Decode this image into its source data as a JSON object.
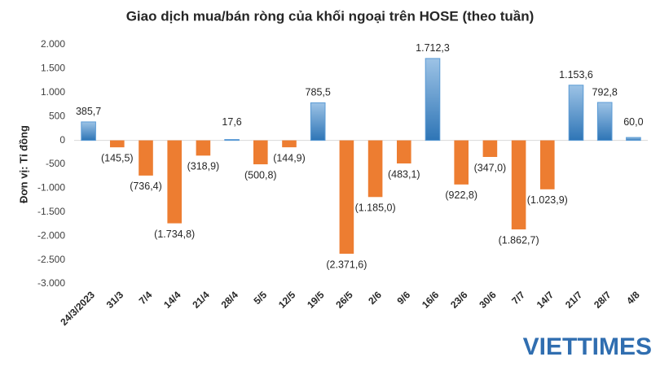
{
  "chart_data": {
    "type": "bar",
    "title": "Giao dịch mua/bán ròng của khối ngoại trên HOSE (theo tuần)",
    "y_label": "Đơn vị: Tỉ đồng",
    "watermark": "VIETTIMES",
    "categories": [
      "24/3/2023",
      "31/3",
      "7/4",
      "14/4",
      "21/4",
      "28/4",
      "5/5",
      "12/5",
      "19/5",
      "26/5",
      "2/6",
      "9/6",
      "16/6",
      "23/6",
      "30/6",
      "7/7",
      "14/7",
      "21/7",
      "28/7",
      "4/8"
    ],
    "values": [
      385.7,
      -145.5,
      -736.4,
      -1734.8,
      -318.9,
      17.6,
      -500.8,
      -144.9,
      785.5,
      -2371.6,
      -1185.0,
      -483.1,
      1712.3,
      -922.8,
      -347.0,
      -1862.7,
      -1023.9,
      1153.6,
      792.8,
      60.0
    ],
    "value_labels": [
      "385,7",
      "(145,5)",
      "(736,4)",
      "(1.734,8)",
      "(318,9)",
      "17,6",
      "(500,8)",
      "(144,9)",
      "785,5",
      "(2.371,6)",
      "(1.185,0)",
      "(483,1)",
      "1.712,3",
      "(922,8)",
      "(347,0)",
      "(1.862,7)",
      "(1.023,9)",
      "1.153,6",
      "792,8",
      "60,0"
    ],
    "positive_color": "#5b9bd5",
    "negative_color": "#ed7d31",
    "ylim": [
      -3000,
      2000
    ],
    "yticks": [
      {
        "value": 2000,
        "label": "2.000"
      },
      {
        "value": 1500,
        "label": "1.500"
      },
      {
        "value": 1000,
        "label": "1.000"
      },
      500,
      0,
      -500,
      {
        "value": -1000,
        "label": "-1.000"
      },
      {
        "value": -1500,
        "label": "-1.500"
      },
      {
        "value": -2000,
        "label": "-2.000"
      },
      {
        "value": -2500,
        "label": "-2.500"
      },
      {
        "value": -3000,
        "label": "-3.000"
      }
    ]
  }
}
